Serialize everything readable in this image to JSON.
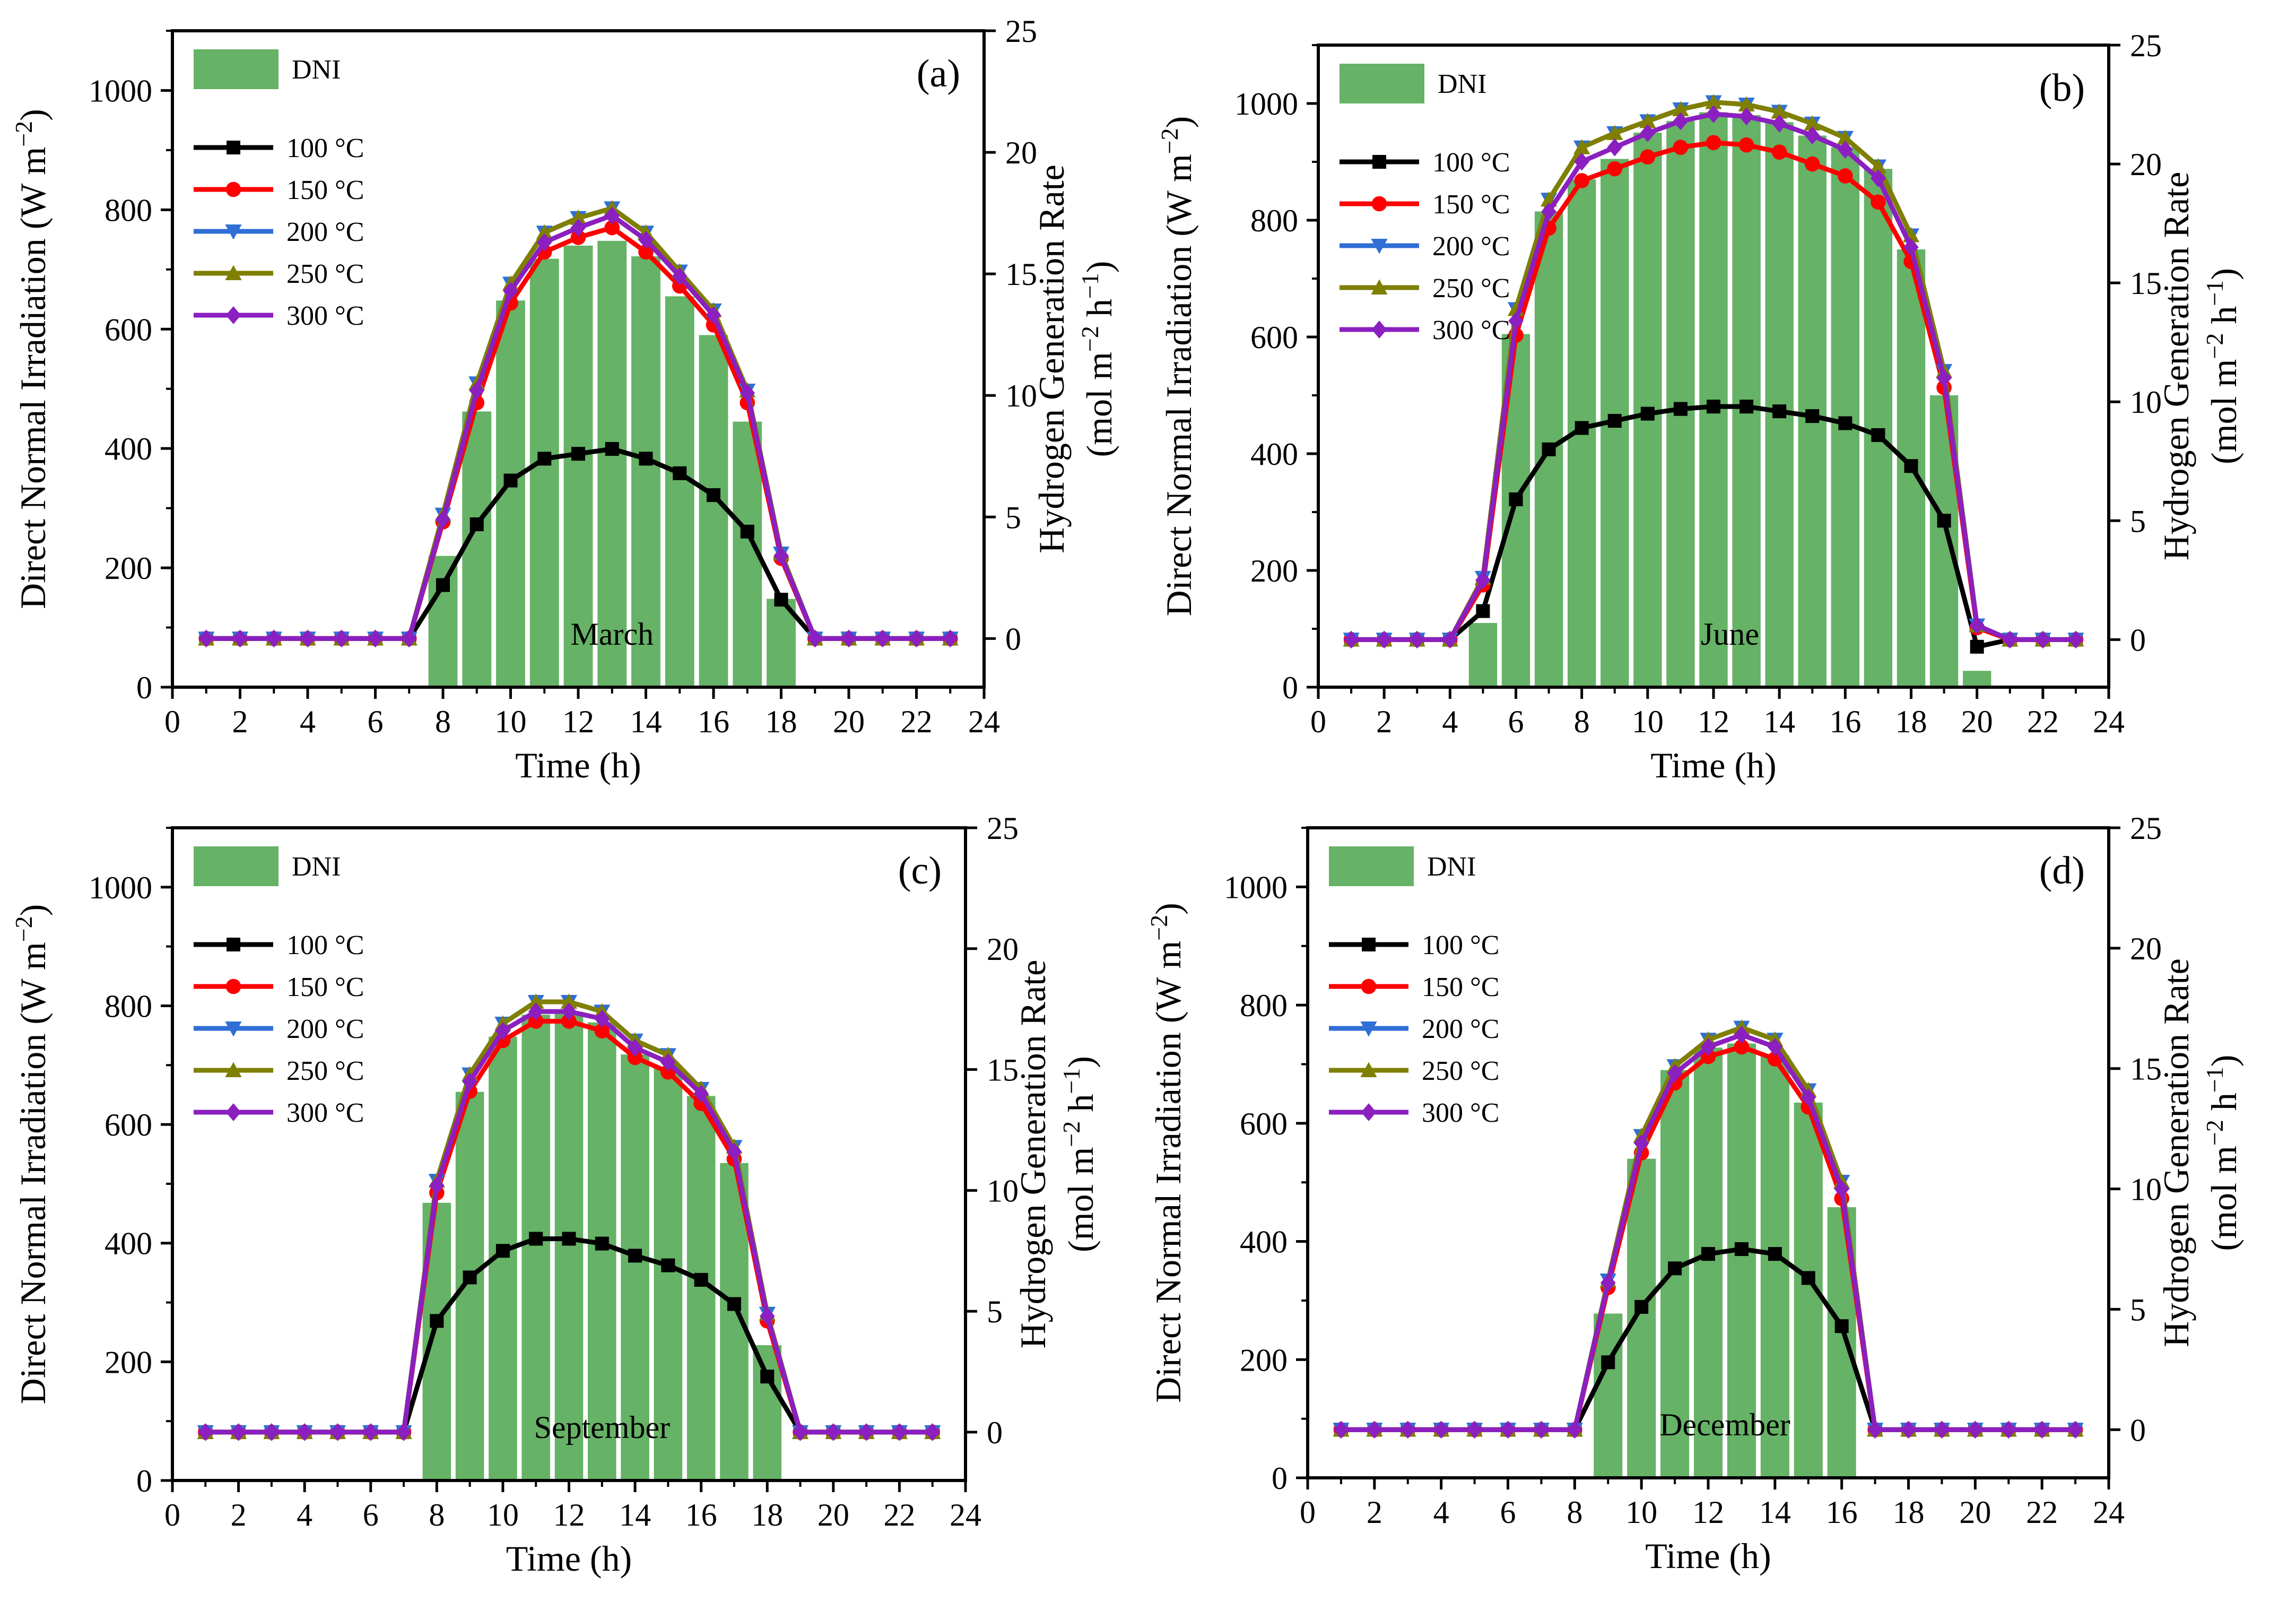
{
  "figure": {
    "series_colors": {
      "DNI": "#66b266",
      "100 °C": "#000000",
      "150 °C": "#ff0000",
      "200 °C": "#2f6fd6",
      "250 °C": "#7f7f00",
      "300 °C": "#8b1fbf"
    },
    "series_markers": {
      "100 °C": "square",
      "150 °C": "circle",
      "200 °C": "triangle-down",
      "250 °C": "triangle-up",
      "300 °C": "diamond"
    }
  },
  "chart_data": [
    {
      "type": "bar+line",
      "panel_label": "(a)",
      "month": "March",
      "xlabel": "Time (h)",
      "ylabel_left": "Direct Normal Irradiation (W m−2)",
      "ylabel_right_line1": "Hydrogen Generation Rate",
      "ylabel_right_line2": "(mol m−2 h−1)",
      "xlim": [
        0,
        24
      ],
      "ylim_left": [
        0,
        1100
      ],
      "ylim_right": [
        -2,
        25
      ],
      "xticks": [
        0,
        2,
        4,
        6,
        8,
        10,
        12,
        14,
        16,
        18,
        20,
        22,
        24
      ],
      "yticks_left": [
        0,
        200,
        400,
        600,
        800,
        1000
      ],
      "yticks_right": [
        0,
        5,
        10,
        15,
        20,
        25
      ],
      "legend": [
        "DNI",
        "100 °C",
        "150 °C",
        "200 °C",
        "250 °C",
        "300 °C"
      ],
      "dni_hours": [
        8,
        9,
        10,
        11,
        12,
        13,
        14,
        15,
        16,
        17,
        18
      ],
      "dni_values": [
        220,
        462,
        648,
        718,
        740,
        748,
        722,
        655,
        590,
        445,
        148
      ],
      "x": [
        1,
        2,
        3,
        4,
        5,
        6,
        7,
        8,
        9,
        10,
        11,
        12,
        13,
        14,
        15,
        16,
        17,
        18,
        19,
        20,
        21,
        22,
        23
      ],
      "series": [
        {
          "name": "100 °C",
          "values": [
            0,
            0,
            0,
            0,
            0,
            0,
            0,
            2.2,
            4.7,
            6.5,
            7.4,
            7.6,
            7.8,
            7.4,
            6.8,
            5.9,
            4.4,
            1.6,
            0,
            0,
            0,
            0,
            0
          ]
        },
        {
          "name": "150 °C",
          "values": [
            0,
            0,
            0,
            0,
            0,
            0,
            0,
            4.8,
            9.7,
            13.8,
            15.9,
            16.5,
            16.9,
            15.9,
            14.5,
            12.9,
            9.7,
            3.3,
            0,
            0,
            0,
            0,
            0
          ]
        },
        {
          "name": "200 °C",
          "values": [
            0,
            0,
            0,
            0,
            0,
            0,
            0,
            5.1,
            10.5,
            14.6,
            16.7,
            17.3,
            17.7,
            16.7,
            15.1,
            13.5,
            10.2,
            3.5,
            0,
            0,
            0,
            0,
            0
          ]
        },
        {
          "name": "250 °C",
          "values": [
            0,
            0,
            0,
            0,
            0,
            0,
            0,
            5.1,
            10.5,
            14.6,
            16.7,
            17.3,
            17.7,
            16.7,
            15.1,
            13.5,
            10.2,
            3.5,
            0,
            0,
            0,
            0,
            0
          ]
        },
        {
          "name": "300 °C",
          "values": [
            0,
            0,
            0,
            0,
            0,
            0,
            0,
            4.9,
            10.2,
            14.3,
            16.3,
            16.9,
            17.4,
            16.4,
            14.9,
            13.3,
            10.1,
            3.4,
            0,
            0,
            0,
            0,
            0
          ]
        }
      ]
    },
    {
      "type": "bar+line",
      "panel_label": "(b)",
      "month": "June",
      "xlabel": "Time (h)",
      "ylabel_left": "Direct Normal Irradiation (W m−2)",
      "ylabel_right_line1": "Hydrogen Generation Rate",
      "ylabel_right_line2": "(mol m−2 h−1)",
      "xlim": [
        0,
        24
      ],
      "ylim_left": [
        0,
        1100
      ],
      "ylim_right": [
        -2,
        25
      ],
      "xticks": [
        0,
        2,
        4,
        6,
        8,
        10,
        12,
        14,
        16,
        18,
        20,
        22,
        24
      ],
      "yticks_left": [
        0,
        200,
        400,
        600,
        800,
        1000
      ],
      "yticks_right": [
        0,
        5,
        10,
        15,
        20,
        25
      ],
      "legend": [
        "DNI",
        "100 °C",
        "150 °C",
        "200 °C",
        "250 °C",
        "300 °C"
      ],
      "dni_hours": [
        5,
        6,
        7,
        8,
        9,
        10,
        11,
        12,
        13,
        14,
        15,
        16,
        17,
        18,
        19,
        20
      ],
      "dni_values": [
        110,
        605,
        815,
        870,
        905,
        950,
        970,
        985,
        980,
        968,
        945,
        925,
        888,
        750,
        500,
        28
      ],
      "x": [
        1,
        2,
        3,
        4,
        5,
        6,
        7,
        8,
        9,
        10,
        11,
        12,
        13,
        14,
        15,
        16,
        17,
        18,
        19,
        20,
        21,
        22,
        23
      ],
      "series": [
        {
          "name": "100 °C",
          "values": [
            0,
            0,
            0,
            0,
            1.2,
            5.9,
            8.0,
            8.9,
            9.2,
            9.5,
            9.7,
            9.8,
            9.8,
            9.6,
            9.4,
            9.1,
            8.6,
            7.3,
            5.0,
            -0.3,
            0,
            0,
            0
          ]
        },
        {
          "name": "150 °C",
          "values": [
            0,
            0,
            0,
            0,
            2.3,
            12.8,
            17.3,
            19.3,
            19.8,
            20.3,
            20.7,
            20.9,
            20.8,
            20.5,
            20.0,
            19.5,
            18.4,
            15.9,
            10.6,
            0.5,
            0,
            0,
            0
          ]
        },
        {
          "name": "200 °C",
          "values": [
            0,
            0,
            0,
            0,
            2.6,
            13.9,
            18.5,
            20.7,
            21.3,
            21.8,
            22.3,
            22.6,
            22.5,
            22.2,
            21.7,
            21.1,
            19.9,
            17.0,
            11.3,
            0.6,
            0,
            0,
            0
          ]
        },
        {
          "name": "250 °C",
          "values": [
            0,
            0,
            0,
            0,
            2.6,
            13.9,
            18.5,
            20.7,
            21.3,
            21.8,
            22.3,
            22.6,
            22.5,
            22.2,
            21.7,
            21.1,
            19.9,
            17.0,
            11.3,
            0.6,
            0,
            0,
            0
          ]
        },
        {
          "name": "300 °C",
          "values": [
            0,
            0,
            0,
            0,
            2.5,
            13.4,
            18.0,
            20.1,
            20.7,
            21.3,
            21.8,
            22.1,
            22.0,
            21.7,
            21.2,
            20.6,
            19.4,
            16.5,
            11.0,
            0.6,
            0,
            0,
            0
          ]
        }
      ]
    },
    {
      "type": "bar+line",
      "panel_label": "(c)",
      "month": "September",
      "xlabel": "Time (h)",
      "ylabel_left": "Direct Normal Irradiation (W m−2)",
      "ylabel_right_line1": "Hydrogen Generation Rate",
      "ylabel_right_line2": "(mol m−2 h−1)",
      "xlim": [
        0,
        24
      ],
      "ylim_left": [
        0,
        1100
      ],
      "ylim_right": [
        -2,
        25
      ],
      "xticks": [
        0,
        2,
        4,
        6,
        8,
        10,
        12,
        14,
        16,
        18,
        20,
        22,
        24
      ],
      "yticks_left": [
        0,
        200,
        400,
        600,
        800,
        1000
      ],
      "yticks_right": [
        0,
        5,
        10,
        15,
        20,
        25
      ],
      "legend": [
        "DNI",
        "100 °C",
        "150 °C",
        "200 °C",
        "250 °C",
        "300 °C"
      ],
      "dni_hours": [
        8,
        9,
        10,
        11,
        12,
        13,
        14,
        15,
        16,
        17,
        18
      ],
      "dni_values": [
        468,
        655,
        748,
        785,
        790,
        772,
        718,
        695,
        648,
        535,
        228
      ],
      "x": [
        1,
        2,
        3,
        4,
        5,
        6,
        7,
        8,
        9,
        10,
        11,
        12,
        13,
        14,
        15,
        16,
        17,
        18,
        19,
        20,
        21,
        22,
        23
      ],
      "series": [
        {
          "name": "100 °C",
          "values": [
            0,
            0,
            0,
            0,
            0,
            0,
            0,
            4.6,
            6.4,
            7.5,
            8.0,
            8.0,
            7.8,
            7.3,
            6.9,
            6.3,
            5.3,
            2.3,
            0,
            0,
            0,
            0,
            0
          ]
        },
        {
          "name": "150 °C",
          "values": [
            0,
            0,
            0,
            0,
            0,
            0,
            0,
            9.9,
            14.1,
            16.2,
            17.0,
            17.0,
            16.6,
            15.5,
            14.9,
            13.6,
            11.3,
            4.6,
            0,
            0,
            0,
            0,
            0
          ]
        },
        {
          "name": "200 °C",
          "values": [
            0,
            0,
            0,
            0,
            0,
            0,
            0,
            10.4,
            14.8,
            16.9,
            17.8,
            17.8,
            17.4,
            16.2,
            15.6,
            14.2,
            11.8,
            4.9,
            0,
            0,
            0,
            0,
            0
          ]
        },
        {
          "name": "250 °C",
          "values": [
            0,
            0,
            0,
            0,
            0,
            0,
            0,
            10.4,
            14.8,
            16.9,
            17.8,
            17.8,
            17.4,
            16.2,
            15.6,
            14.2,
            11.8,
            4.9,
            0,
            0,
            0,
            0,
            0
          ]
        },
        {
          "name": "300 °C",
          "values": [
            0,
            0,
            0,
            0,
            0,
            0,
            0,
            10.2,
            14.5,
            16.6,
            17.4,
            17.4,
            17.1,
            15.9,
            15.3,
            14.0,
            11.6,
            4.8,
            0,
            0,
            0,
            0,
            0
          ]
        }
      ]
    },
    {
      "type": "bar+line",
      "panel_label": "(d)",
      "month": "December",
      "xlabel": "Time (h)",
      "ylabel_left": "Direct Normal Irradiation (W m−2)",
      "ylabel_right_line1": "Hydrogen Generation Rate",
      "ylabel_right_line2": "(mol m−2 h−1)",
      "xlim": [
        0,
        24
      ],
      "ylim_left": [
        0,
        1100
      ],
      "ylim_right": [
        -2,
        25
      ],
      "xticks": [
        0,
        2,
        4,
        6,
        8,
        10,
        12,
        14,
        16,
        18,
        20,
        22,
        24
      ],
      "yticks_left": [
        0,
        200,
        400,
        600,
        800,
        1000
      ],
      "yticks_right": [
        0,
        5,
        10,
        15,
        20,
        25
      ],
      "legend": [
        "DNI",
        "100 °C",
        "150 °C",
        "200 °C",
        "250 °C",
        "300 °C"
      ],
      "dni_hours": [
        9,
        10,
        11,
        12,
        13,
        14,
        15,
        16
      ],
      "dni_values": [
        278,
        540,
        690,
        728,
        735,
        715,
        635,
        458
      ],
      "x": [
        1,
        2,
        3,
        4,
        5,
        6,
        7,
        8,
        9,
        10,
        11,
        12,
        13,
        14,
        15,
        16,
        17,
        18,
        19,
        20,
        21,
        22,
        23
      ],
      "series": [
        {
          "name": "100 °C",
          "values": [
            0,
            0,
            0,
            0,
            0,
            0,
            0,
            0,
            2.8,
            5.1,
            6.7,
            7.3,
            7.5,
            7.3,
            6.3,
            4.3,
            0,
            0,
            0,
            0,
            0,
            0,
            0
          ]
        },
        {
          "name": "150 °C",
          "values": [
            0,
            0,
            0,
            0,
            0,
            0,
            0,
            0,
            5.9,
            11.5,
            14.4,
            15.5,
            15.9,
            15.4,
            13.4,
            9.6,
            0,
            0,
            0,
            0,
            0,
            0,
            0
          ]
        },
        {
          "name": "200 °C",
          "values": [
            0,
            0,
            0,
            0,
            0,
            0,
            0,
            0,
            6.2,
            12.2,
            15.1,
            16.2,
            16.7,
            16.2,
            14.1,
            10.3,
            0,
            0,
            0,
            0,
            0,
            0,
            0
          ]
        },
        {
          "name": "250 °C",
          "values": [
            0,
            0,
            0,
            0,
            0,
            0,
            0,
            0,
            6.2,
            12.2,
            15.1,
            16.2,
            16.7,
            16.2,
            14.1,
            10.3,
            0,
            0,
            0,
            0,
            0,
            0,
            0
          ]
        },
        {
          "name": "300 °C",
          "values": [
            0,
            0,
            0,
            0,
            0,
            0,
            0,
            0,
            6.1,
            11.9,
            14.8,
            15.9,
            16.4,
            15.9,
            13.8,
            10.0,
            0,
            0,
            0,
            0,
            0,
            0,
            0
          ]
        }
      ]
    }
  ]
}
